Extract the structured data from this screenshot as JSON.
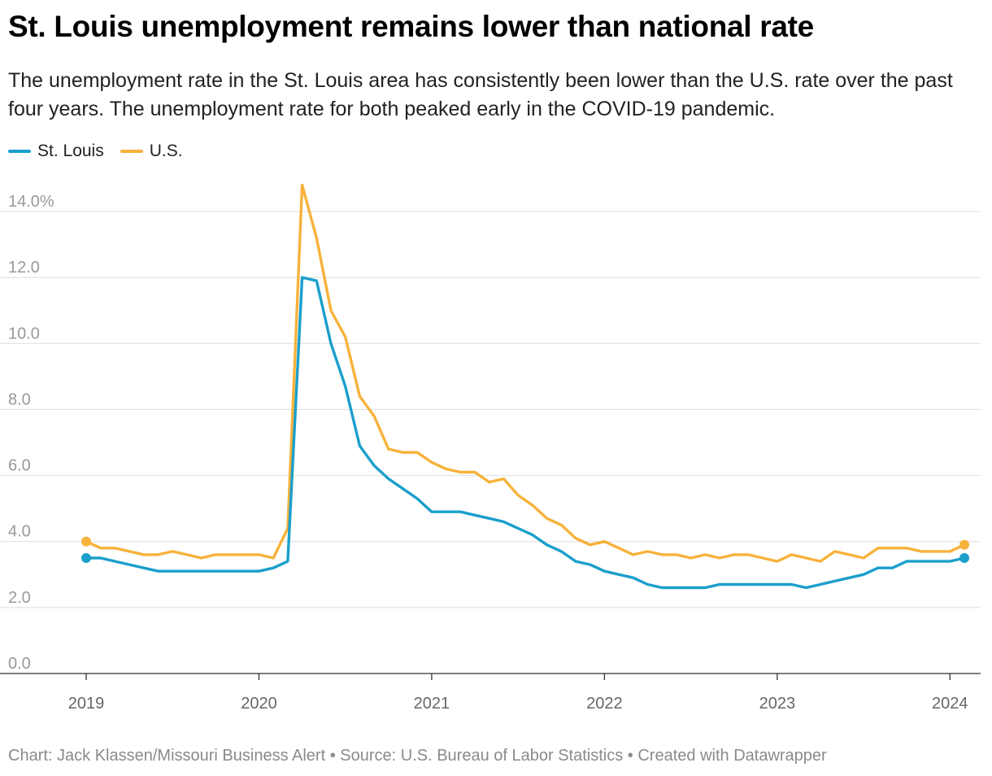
{
  "title": "St. Louis unemployment remains lower than national rate",
  "subtitle": "The unemployment rate in the St. Louis area has consistently been lower than the U.S. rate over the past four years. The unemployment rate for both peaked early in the COVID-19 pandemic.",
  "footer": {
    "chart_credit": "Chart: Jack Klassen/Missouri Business Alert",
    "sep1": " • ",
    "source": "Source: U.S. Bureau of Labor Statistics",
    "sep2": "  • ",
    "created": "Created with Datawrapper"
  },
  "chart_data": {
    "type": "line",
    "title": "St. Louis unemployment remains lower than national rate",
    "xlabel": "",
    "ylabel": "",
    "x_start": "2019-01",
    "x_step": "month",
    "xlim": [
      2019.0,
      2024.0833
    ],
    "ylim": [
      0,
      14
    ],
    "y_ticks": [
      0,
      2,
      4,
      6,
      8,
      10,
      12,
      14
    ],
    "y_tick_labels": [
      "0.0",
      "2.0",
      "4.0",
      "6.0",
      "8.0",
      "10.0",
      "12.0",
      "14.0%"
    ],
    "x_ticks": [
      2019,
      2020,
      2021,
      2022,
      2023,
      2024
    ],
    "x_tick_labels": [
      "2019",
      "2020",
      "2021",
      "2022",
      "2023",
      "2024"
    ],
    "grid": true,
    "legend_position": "top-left",
    "series": [
      {
        "name": "St. Louis",
        "color": "#1a9fcb",
        "values": [
          3.5,
          3.5,
          3.4,
          3.3,
          3.2,
          3.1,
          3.1,
          3.1,
          3.1,
          3.1,
          3.1,
          3.1,
          3.1,
          3.2,
          3.4,
          12.0,
          11.9,
          10.0,
          8.7,
          6.9,
          6.3,
          5.9,
          5.6,
          5.3,
          4.9,
          4.9,
          4.9,
          4.8,
          4.7,
          4.6,
          4.4,
          4.2,
          3.9,
          3.7,
          3.4,
          3.3,
          3.1,
          3.0,
          2.9,
          2.7,
          2.6,
          2.6,
          2.6,
          2.6,
          2.7,
          2.7,
          2.7,
          2.7,
          2.7,
          2.7,
          2.6,
          2.7,
          2.8,
          2.9,
          3.0,
          3.2,
          3.2,
          3.4,
          3.4,
          3.4,
          3.4,
          3.5
        ]
      },
      {
        "name": "U.S.",
        "color": "#f7b23b",
        "values": [
          4.0,
          3.8,
          3.8,
          3.7,
          3.6,
          3.6,
          3.7,
          3.6,
          3.5,
          3.6,
          3.6,
          3.6,
          3.6,
          3.5,
          4.4,
          14.8,
          13.2,
          11.0,
          10.2,
          8.4,
          7.8,
          6.8,
          6.7,
          6.7,
          6.4,
          6.2,
          6.1,
          6.1,
          5.8,
          5.9,
          5.4,
          5.1,
          4.7,
          4.5,
          4.1,
          3.9,
          4.0,
          3.8,
          3.6,
          3.7,
          3.6,
          3.6,
          3.5,
          3.6,
          3.5,
          3.6,
          3.6,
          3.5,
          3.4,
          3.6,
          3.5,
          3.4,
          3.7,
          3.6,
          3.5,
          3.8,
          3.8,
          3.8,
          3.7,
          3.7,
          3.7,
          3.9
        ]
      }
    ]
  }
}
